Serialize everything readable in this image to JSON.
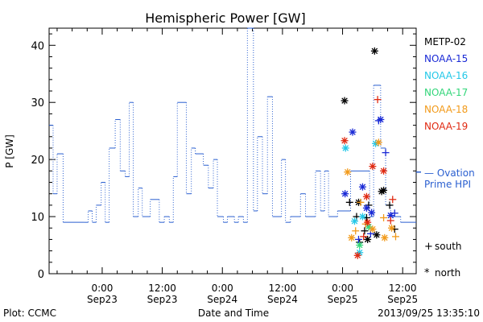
{
  "chart_data": {
    "type": "line",
    "title": "Hemispheric Power [GW]",
    "ylabel": "P [GW]",
    "xlabel": "Date and Time",
    "ylim": [
      0,
      43
    ],
    "x_ticks": [
      {
        "hours": 24,
        "l1": "0:00",
        "l2": "Sep23"
      },
      {
        "hours": 36,
        "l1": "12:00",
        "l2": "Sep23"
      },
      {
        "hours": 48,
        "l1": "0:00",
        "l2": "Sep24"
      },
      {
        "hours": 60,
        "l1": "12:00",
        "l2": "Sep24"
      },
      {
        "hours": 72,
        "l1": "0:00",
        "l2": "Sep25"
      },
      {
        "hours": 84,
        "l1": "12:00",
        "l2": "Sep25"
      }
    ],
    "x_range_hours": [
      13.4,
      86.7
    ],
    "y_ticks": [
      0,
      10,
      20,
      30,
      40
    ],
    "footer_left": "Plot: CCMC",
    "footer_right": "2013/09/25 13:35:10",
    "ovation": {
      "name": "— Ovation Prime HPI",
      "name_line1": "— Ovation",
      "name_line2": "Prime HPI",
      "color": "#2a5fd0",
      "pointer_value": 17.8,
      "current_value": 9,
      "segments": [
        [
          13.4,
          26
        ],
        [
          14.2,
          14
        ],
        [
          15.0,
          21
        ],
        [
          16.2,
          9
        ],
        [
          20.4,
          9
        ],
        [
          21.2,
          11
        ],
        [
          22.0,
          9
        ],
        [
          22.8,
          12
        ],
        [
          23.8,
          16
        ],
        [
          24.6,
          9
        ],
        [
          25.4,
          22
        ],
        [
          26.6,
          27
        ],
        [
          27.6,
          18
        ],
        [
          28.6,
          17
        ],
        [
          29.4,
          30
        ],
        [
          30.2,
          10
        ],
        [
          31.2,
          15
        ],
        [
          32.0,
          10
        ],
        [
          33.6,
          13
        ],
        [
          35.4,
          9
        ],
        [
          36.4,
          10
        ],
        [
          37.4,
          9
        ],
        [
          38.2,
          17
        ],
        [
          39.0,
          30
        ],
        [
          40.8,
          14
        ],
        [
          41.8,
          22
        ],
        [
          42.6,
          21
        ],
        [
          44.2,
          19
        ],
        [
          45.2,
          15
        ],
        [
          46.2,
          20
        ],
        [
          47.0,
          10
        ],
        [
          48.2,
          9
        ],
        [
          49.0,
          10
        ],
        [
          50.4,
          9
        ],
        [
          51.2,
          10
        ],
        [
          52.2,
          9
        ],
        [
          53.0,
          43
        ],
        [
          54.2,
          11
        ],
        [
          55.0,
          24
        ],
        [
          56.0,
          14
        ],
        [
          57.0,
          31
        ],
        [
          58.0,
          10
        ],
        [
          59.8,
          20
        ],
        [
          60.6,
          9
        ],
        [
          61.6,
          10
        ],
        [
          63.6,
          14
        ],
        [
          64.6,
          10
        ],
        [
          66.6,
          18
        ],
        [
          67.6,
          11
        ],
        [
          68.4,
          18
        ],
        [
          69.2,
          10
        ],
        [
          71.0,
          11
        ],
        [
          73.6,
          18
        ],
        [
          77.4,
          10
        ],
        [
          78.2,
          33
        ],
        [
          79.6,
          22
        ],
        [
          80.6,
          12
        ],
        [
          81.6,
          10
        ],
        [
          83.6,
          9
        ],
        [
          86.7,
          9
        ]
      ]
    },
    "series": [
      {
        "name": "METP-02",
        "color": "#000000",
        "north": [
          [
            72.4,
            30.3
          ],
          [
            75.2,
            12.5
          ],
          [
            78.4,
            39
          ],
          [
            79.8,
            14.4
          ],
          [
            80.2,
            14.6
          ],
          [
            78.8,
            6.8
          ],
          [
            77.0,
            6.0
          ]
        ],
        "south": [
          [
            73.4,
            12.5
          ],
          [
            74.8,
            10.0
          ],
          [
            75.4,
            5.5
          ],
          [
            76.4,
            7.5
          ],
          [
            77.2,
            12.0
          ],
          [
            81.4,
            12.0
          ],
          [
            82.4,
            7.8
          ],
          [
            76.8,
            9.8
          ]
        ]
      },
      {
        "name": "NOAA-15",
        "color": "#1a2ad6",
        "north": [
          [
            72.5,
            14.0
          ],
          [
            74.0,
            24.8
          ],
          [
            76.0,
            15.2
          ],
          [
            76.8,
            11.5
          ],
          [
            77.8,
            10.7
          ],
          [
            79.6,
            27.0
          ],
          [
            81.6,
            10.2
          ]
        ],
        "south": [
          [
            79.2,
            26.8
          ],
          [
            80.6,
            21.2
          ],
          [
            82.4,
            10.6
          ],
          [
            75.2,
            6.0
          ],
          [
            77.6,
            7.0
          ]
        ]
      },
      {
        "name": "NOAA-16",
        "color": "#23c8e8",
        "north": [
          [
            72.6,
            22.0
          ],
          [
            74.4,
            9.2
          ],
          [
            75.4,
            3.7
          ],
          [
            76.0,
            10.0
          ],
          [
            78.6,
            22.8
          ]
        ],
        "south": []
      },
      {
        "name": "NOAA-17",
        "color": "#33d67a",
        "north": [
          [
            75.4,
            5.0
          ],
          [
            77.2,
            8.2
          ]
        ],
        "south": []
      },
      {
        "name": "NOAA-18",
        "color": "#f29a1a",
        "north": [
          [
            73.0,
            17.8
          ],
          [
            73.8,
            6.3
          ],
          [
            78.0,
            7.8
          ],
          [
            79.2,
            23.0
          ],
          [
            80.4,
            6.3
          ],
          [
            81.8,
            8.0
          ]
        ],
        "south": [
          [
            74.6,
            7.5
          ],
          [
            76.6,
            8.7
          ],
          [
            80.2,
            9.8
          ],
          [
            82.6,
            6.5
          ],
          [
            75.6,
            12.5
          ]
        ]
      },
      {
        "name": "NOAA-19",
        "color": "#e02a12",
        "north": [
          [
            72.4,
            23.3
          ],
          [
            75.0,
            3.2
          ],
          [
            76.8,
            13.5
          ],
          [
            78.0,
            18.8
          ],
          [
            80.2,
            18.0
          ],
          [
            77.0,
            9.0
          ]
        ],
        "south": [
          [
            79.0,
            30.5
          ],
          [
            76.2,
            6.5
          ],
          [
            81.6,
            9.3
          ],
          [
            82.0,
            13.0
          ]
        ]
      }
    ],
    "markers_legend": {
      "south_symbol": "+",
      "south_label": "south",
      "north_symbol": "*",
      "north_label": "north"
    }
  }
}
